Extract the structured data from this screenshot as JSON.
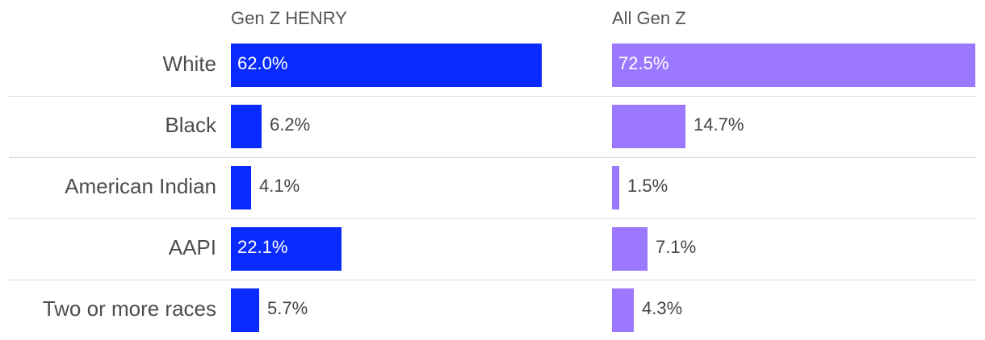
{
  "chart_data": {
    "type": "bar",
    "orientation": "horizontal",
    "categories": [
      "White",
      "Black",
      "American Indian",
      "AAPI",
      "Two or more races"
    ],
    "series": [
      {
        "name": "Gen Z HENRY",
        "values": [
          62.0,
          6.2,
          4.1,
          22.1,
          5.7
        ],
        "color": "#0a2bff",
        "labels": [
          "62.0%",
          "6.2%",
          "4.1%",
          "22.1%",
          "5.7%"
        ]
      },
      {
        "name": "All Gen Z",
        "values": [
          72.5,
          14.7,
          1.5,
          7.1,
          4.3
        ],
        "color": "#9b78ff",
        "labels": [
          "72.5%",
          "14.7%",
          "1.5%",
          "7.1%",
          "4.3%"
        ]
      }
    ],
    "xlim": [
      0,
      72.5
    ],
    "grid": false,
    "legend": "none"
  }
}
